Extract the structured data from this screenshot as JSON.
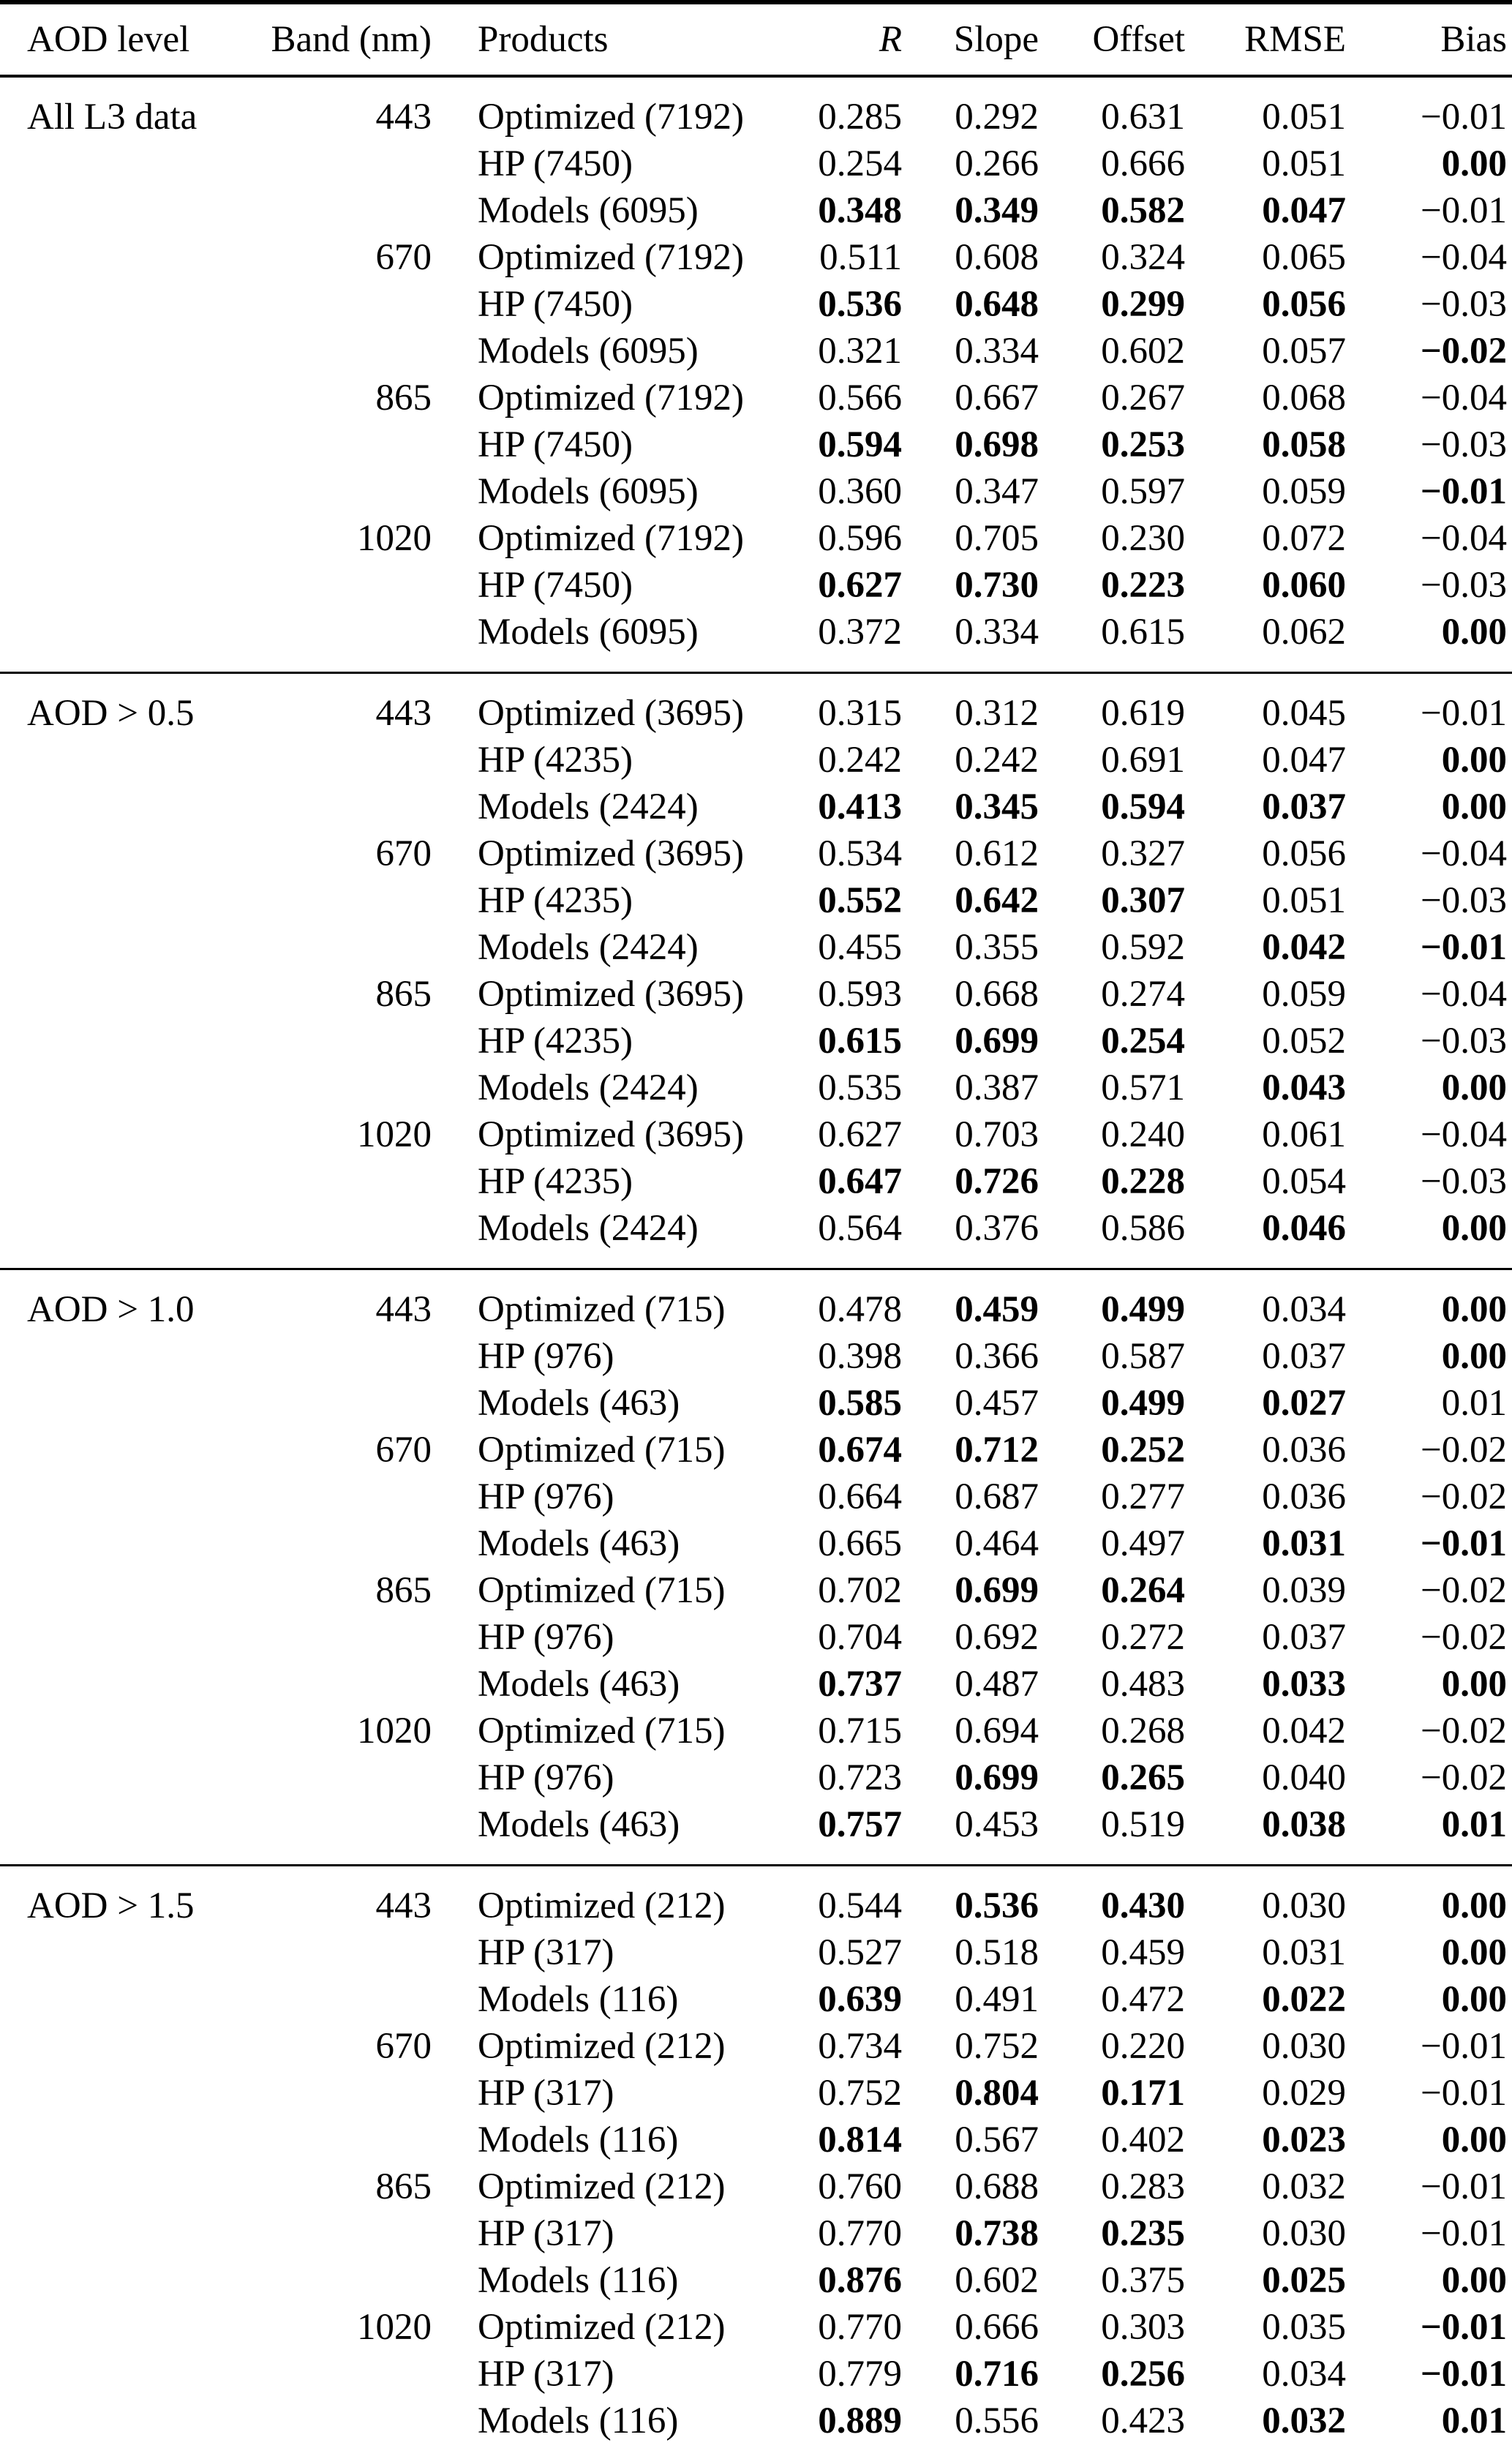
{
  "header": {
    "columns": [
      "AOD level",
      "Band (nm)",
      "Products",
      "R",
      "Slope",
      "Offset",
      "RMSE",
      "Bias"
    ]
  },
  "sections": [
    {
      "aod_level": "All L3 data",
      "groups": [
        {
          "band": "443",
          "rows": [
            {
              "product": "Optimized (7192)",
              "values": [
                "0.285",
                "0.292",
                "0.631",
                "0.051",
                "−0.01"
              ],
              "bold": [
                0,
                0,
                0,
                0,
                0
              ]
            },
            {
              "product": "HP (7450)",
              "values": [
                "0.254",
                "0.266",
                "0.666",
                "0.051",
                "0.00"
              ],
              "bold": [
                0,
                0,
                0,
                0,
                1
              ]
            },
            {
              "product": "Models (6095)",
              "values": [
                "0.348",
                "0.349",
                "0.582",
                "0.047",
                "−0.01"
              ],
              "bold": [
                1,
                1,
                1,
                1,
                0
              ]
            }
          ]
        },
        {
          "band": "670",
          "rows": [
            {
              "product": "Optimized (7192)",
              "values": [
                "0.511",
                "0.608",
                "0.324",
                "0.065",
                "−0.04"
              ],
              "bold": [
                0,
                0,
                0,
                0,
                0
              ]
            },
            {
              "product": "HP (7450)",
              "values": [
                "0.536",
                "0.648",
                "0.299",
                "0.056",
                "−0.03"
              ],
              "bold": [
                1,
                1,
                1,
                1,
                0
              ]
            },
            {
              "product": "Models (6095)",
              "values": [
                "0.321",
                "0.334",
                "0.602",
                "0.057",
                "−0.02"
              ],
              "bold": [
                0,
                0,
                0,
                0,
                1
              ]
            }
          ]
        },
        {
          "band": "865",
          "rows": [
            {
              "product": "Optimized (7192)",
              "values": [
                "0.566",
                "0.667",
                "0.267",
                "0.068",
                "−0.04"
              ],
              "bold": [
                0,
                0,
                0,
                0,
                0
              ]
            },
            {
              "product": "HP (7450)",
              "values": [
                "0.594",
                "0.698",
                "0.253",
                "0.058",
                "−0.03"
              ],
              "bold": [
                1,
                1,
                1,
                1,
                0
              ]
            },
            {
              "product": "Models (6095)",
              "values": [
                "0.360",
                "0.347",
                "0.597",
                "0.059",
                "−0.01"
              ],
              "bold": [
                0,
                0,
                0,
                0,
                1
              ]
            }
          ]
        },
        {
          "band": "1020",
          "rows": [
            {
              "product": "Optimized (7192)",
              "values": [
                "0.596",
                "0.705",
                "0.230",
                "0.072",
                "−0.04"
              ],
              "bold": [
                0,
                0,
                0,
                0,
                0
              ]
            },
            {
              "product": "HP (7450)",
              "values": [
                "0.627",
                "0.730",
                "0.223",
                "0.060",
                "−0.03"
              ],
              "bold": [
                1,
                1,
                1,
                1,
                0
              ]
            },
            {
              "product": "Models (6095)",
              "values": [
                "0.372",
                "0.334",
                "0.615",
                "0.062",
                "0.00"
              ],
              "bold": [
                0,
                0,
                0,
                0,
                1
              ]
            }
          ]
        }
      ]
    },
    {
      "aod_level": "AOD > 0.5",
      "groups": [
        {
          "band": "443",
          "rows": [
            {
              "product": "Optimized (3695)",
              "values": [
                "0.315",
                "0.312",
                "0.619",
                "0.045",
                "−0.01"
              ],
              "bold": [
                0,
                0,
                0,
                0,
                0
              ]
            },
            {
              "product": "HP (4235)",
              "values": [
                "0.242",
                "0.242",
                "0.691",
                "0.047",
                "0.00"
              ],
              "bold": [
                0,
                0,
                0,
                0,
                1
              ]
            },
            {
              "product": "Models (2424)",
              "values": [
                "0.413",
                "0.345",
                "0.594",
                "0.037",
                "0.00"
              ],
              "bold": [
                1,
                1,
                1,
                1,
                1
              ]
            }
          ]
        },
        {
          "band": "670",
          "rows": [
            {
              "product": "Optimized (3695)",
              "values": [
                "0.534",
                "0.612",
                "0.327",
                "0.056",
                "−0.04"
              ],
              "bold": [
                0,
                0,
                0,
                0,
                0
              ]
            },
            {
              "product": "HP (4235)",
              "values": [
                "0.552",
                "0.642",
                "0.307",
                "0.051",
                "−0.03"
              ],
              "bold": [
                1,
                1,
                1,
                0,
                0
              ]
            },
            {
              "product": "Models (2424)",
              "values": [
                "0.455",
                "0.355",
                "0.592",
                "0.042",
                "−0.01"
              ],
              "bold": [
                0,
                0,
                0,
                1,
                1
              ]
            }
          ]
        },
        {
          "band": "865",
          "rows": [
            {
              "product": "Optimized (3695)",
              "values": [
                "0.593",
                "0.668",
                "0.274",
                "0.059",
                "−0.04"
              ],
              "bold": [
                0,
                0,
                0,
                0,
                0
              ]
            },
            {
              "product": "HP (4235)",
              "values": [
                "0.615",
                "0.699",
                "0.254",
                "0.052",
                "−0.03"
              ],
              "bold": [
                1,
                1,
                1,
                0,
                0
              ]
            },
            {
              "product": "Models (2424)",
              "values": [
                "0.535",
                "0.387",
                "0.571",
                "0.043",
                "0.00"
              ],
              "bold": [
                0,
                0,
                0,
                1,
                1
              ]
            }
          ]
        },
        {
          "band": "1020",
          "rows": [
            {
              "product": "Optimized (3695)",
              "values": [
                "0.627",
                "0.703",
                "0.240",
                "0.061",
                "−0.04"
              ],
              "bold": [
                0,
                0,
                0,
                0,
                0
              ]
            },
            {
              "product": "HP (4235)",
              "values": [
                "0.647",
                "0.726",
                "0.228",
                "0.054",
                "−0.03"
              ],
              "bold": [
                1,
                1,
                1,
                0,
                0
              ]
            },
            {
              "product": "Models (2424)",
              "values": [
                "0.564",
                "0.376",
                "0.586",
                "0.046",
                "0.00"
              ],
              "bold": [
                0,
                0,
                0,
                1,
                1
              ]
            }
          ]
        }
      ]
    },
    {
      "aod_level": "AOD > 1.0",
      "groups": [
        {
          "band": "443",
          "rows": [
            {
              "product": "Optimized (715)",
              "values": [
                "0.478",
                "0.459",
                "0.499",
                "0.034",
                "0.00"
              ],
              "bold": [
                0,
                1,
                1,
                0,
                1
              ]
            },
            {
              "product": "HP (976)",
              "values": [
                "0.398",
                "0.366",
                "0.587",
                "0.037",
                "0.00"
              ],
              "bold": [
                0,
                0,
                0,
                0,
                1
              ]
            },
            {
              "product": "Models (463)",
              "values": [
                "0.585",
                "0.457",
                "0.499",
                "0.027",
                "0.01"
              ],
              "bold": [
                1,
                0,
                1,
                1,
                0
              ]
            }
          ]
        },
        {
          "band": "670",
          "rows": [
            {
              "product": "Optimized (715)",
              "values": [
                "0.674",
                "0.712",
                "0.252",
                "0.036",
                "−0.02"
              ],
              "bold": [
                1,
                1,
                1,
                0,
                0
              ]
            },
            {
              "product": "HP (976)",
              "values": [
                "0.664",
                "0.687",
                "0.277",
                "0.036",
                "−0.02"
              ],
              "bold": [
                0,
                0,
                0,
                0,
                0
              ]
            },
            {
              "product": "Models (463)",
              "values": [
                "0.665",
                "0.464",
                "0.497",
                "0.031",
                "−0.01"
              ],
              "bold": [
                0,
                0,
                0,
                1,
                1
              ]
            }
          ]
        },
        {
          "band": "865",
          "rows": [
            {
              "product": "Optimized (715)",
              "values": [
                "0.702",
                "0.699",
                "0.264",
                "0.039",
                "−0.02"
              ],
              "bold": [
                0,
                1,
                1,
                0,
                0
              ]
            },
            {
              "product": "HP (976)",
              "values": [
                "0.704",
                "0.692",
                "0.272",
                "0.037",
                "−0.02"
              ],
              "bold": [
                0,
                0,
                0,
                0,
                0
              ]
            },
            {
              "product": "Models (463)",
              "values": [
                "0.737",
                "0.487",
                "0.483",
                "0.033",
                "0.00"
              ],
              "bold": [
                1,
                0,
                0,
                1,
                1
              ]
            }
          ]
        },
        {
          "band": "1020",
          "rows": [
            {
              "product": "Optimized (715)",
              "values": [
                "0.715",
                "0.694",
                "0.268",
                "0.042",
                "−0.02"
              ],
              "bold": [
                0,
                0,
                0,
                0,
                0
              ]
            },
            {
              "product": "HP (976)",
              "values": [
                "0.723",
                "0.699",
                "0.265",
                "0.040",
                "−0.02"
              ],
              "bold": [
                0,
                1,
                1,
                0,
                0
              ]
            },
            {
              "product": "Models (463)",
              "values": [
                "0.757",
                "0.453",
                "0.519",
                "0.038",
                "0.01"
              ],
              "bold": [
                1,
                0,
                0,
                1,
                1
              ]
            }
          ]
        }
      ]
    },
    {
      "aod_level": "AOD > 1.5",
      "groups": [
        {
          "band": "443",
          "rows": [
            {
              "product": "Optimized (212)",
              "values": [
                "0.544",
                "0.536",
                "0.430",
                "0.030",
                "0.00"
              ],
              "bold": [
                0,
                1,
                1,
                0,
                1
              ]
            },
            {
              "product": "HP (317)",
              "values": [
                "0.527",
                "0.518",
                "0.459",
                "0.031",
                "0.00"
              ],
              "bold": [
                0,
                0,
                0,
                0,
                1
              ]
            },
            {
              "product": "Models (116)",
              "values": [
                "0.639",
                "0.491",
                "0.472",
                "0.022",
                "0.00"
              ],
              "bold": [
                1,
                0,
                0,
                1,
                1
              ]
            }
          ]
        },
        {
          "band": "670",
          "rows": [
            {
              "product": "Optimized (212)",
              "values": [
                "0.734",
                "0.752",
                "0.220",
                "0.030",
                "−0.01"
              ],
              "bold": [
                0,
                0,
                0,
                0,
                0
              ]
            },
            {
              "product": "HP (317)",
              "values": [
                "0.752",
                "0.804",
                "0.171",
                "0.029",
                "−0.01"
              ],
              "bold": [
                0,
                1,
                1,
                0,
                0
              ]
            },
            {
              "product": "Models (116)",
              "values": [
                "0.814",
                "0.567",
                "0.402",
                "0.023",
                "0.00"
              ],
              "bold": [
                1,
                0,
                0,
                1,
                1
              ]
            }
          ]
        },
        {
          "band": "865",
          "rows": [
            {
              "product": "Optimized (212)",
              "values": [
                "0.760",
                "0.688",
                "0.283",
                "0.032",
                "−0.01"
              ],
              "bold": [
                0,
                0,
                0,
                0,
                0
              ]
            },
            {
              "product": "HP (317)",
              "values": [
                "0.770",
                "0.738",
                "0.235",
                "0.030",
                "−0.01"
              ],
              "bold": [
                0,
                1,
                1,
                0,
                0
              ]
            },
            {
              "product": "Models (116)",
              "values": [
                "0.876",
                "0.602",
                "0.375",
                "0.025",
                "0.00"
              ],
              "bold": [
                1,
                0,
                0,
                1,
                1
              ]
            }
          ]
        },
        {
          "band": "1020",
          "rows": [
            {
              "product": "Optimized (212)",
              "values": [
                "0.770",
                "0.666",
                "0.303",
                "0.035",
                "−0.01"
              ],
              "bold": [
                0,
                0,
                0,
                0,
                1
              ]
            },
            {
              "product": "HP (317)",
              "values": [
                "0.779",
                "0.716",
                "0.256",
                "0.034",
                "−0.01"
              ],
              "bold": [
                0,
                1,
                1,
                0,
                1
              ]
            },
            {
              "product": "Models (116)",
              "values": [
                "0.889",
                "0.556",
                "0.423",
                "0.032",
                "0.01"
              ],
              "bold": [
                1,
                0,
                0,
                1,
                1
              ]
            }
          ]
        }
      ]
    }
  ]
}
